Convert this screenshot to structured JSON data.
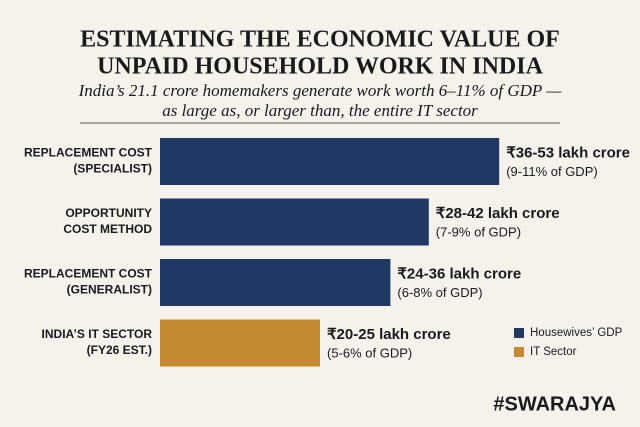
{
  "chart_data": {
    "type": "bar",
    "orientation": "horizontal",
    "title": [
      "ESTIMATING THE ECONOMIC VALUE OF",
      "UNPAID HOUSEHOLD WORK IN INDIA"
    ],
    "subtitle": [
      "India’s 21.1 crore homemakers generate work worth 6–11% of GDP —",
      "as large as, or larger than, the entire IT sector"
    ],
    "categories": [
      [
        "REPLACEMENT COST",
        "(SPECIALIST)"
      ],
      [
        "OPPORTUNITY",
        "COST METHOD"
      ],
      [
        "REPLACEMENT COST",
        "(GENERALIST)"
      ],
      [
        "INDIA’S IT SECTOR",
        "(FY26 EST.)"
      ]
    ],
    "series": [
      {
        "name": "Housewives’ GDP",
        "color": "#1f3864",
        "values": [
          53,
          42,
          36,
          null
        ],
        "value_labels": [
          "₹36-53 lakh crore",
          "₹28-42 lakh crore",
          "₹24-36 lakh crore",
          null
        ],
        "sub_labels": [
          "(9-11% of GDP)",
          "(7-9% of GDP)",
          "(6-8% of GDP)",
          null
        ]
      },
      {
        "name": "IT Sector",
        "color": "#c68a35",
        "values": [
          null,
          null,
          null,
          25
        ],
        "value_labels": [
          null,
          null,
          null,
          "₹20-25 lakh crore"
        ],
        "sub_labels": [
          null,
          null,
          null,
          "(5-6% of GDP)"
        ]
      }
    ],
    "legend": "bottom-right",
    "footer": "#SWARAJYA"
  }
}
